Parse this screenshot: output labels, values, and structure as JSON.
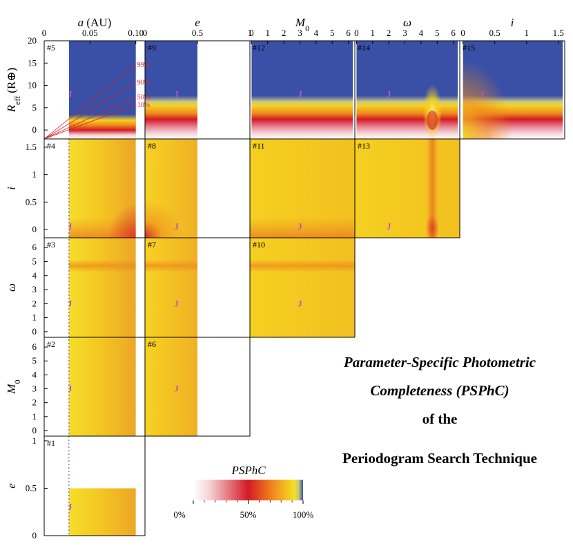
{
  "figure": {
    "caption_lines": [
      "Parameter-Specific Photometric",
      "Completeness (PSPhC)",
      "of the",
      "Periodogram Search Technique"
    ],
    "caption_italic": [
      true,
      true,
      false,
      false
    ]
  },
  "chart_data": {
    "type": "heatmap",
    "title": "Parameter-Specific Photometric Completeness (PSPhC) of the Periodogram Search Technique",
    "columns": [
      {
        "key": "a",
        "label": "a (AU)",
        "ticks": [
          "0",
          "0.05",
          "0.10"
        ],
        "tick_values": [
          0,
          0.05,
          0.1
        ],
        "range": [
          0,
          0.11
        ]
      },
      {
        "key": "e",
        "label": "e",
        "ticks": [
          "0",
          "0.5",
          "1"
        ],
        "tick_values": [
          0,
          0.5,
          1
        ],
        "range": [
          0,
          1
        ]
      },
      {
        "key": "M0",
        "label": "M0",
        "ticks": [
          "0",
          "1",
          "2",
          "3",
          "4",
          "5",
          "6"
        ],
        "tick_values": [
          0,
          1,
          2,
          3,
          4,
          5,
          6
        ],
        "range": [
          -0.1,
          6.4
        ]
      },
      {
        "key": "omega",
        "label": "ω",
        "ticks": [
          "0",
          "1",
          "2",
          "3",
          "4",
          "5",
          "6"
        ],
        "tick_values": [
          0,
          1,
          2,
          3,
          4,
          5,
          6
        ],
        "range": [
          -0.1,
          6.4
        ]
      },
      {
        "key": "i",
        "label": "i",
        "ticks": [
          "0",
          "0.5",
          "1",
          "1.5"
        ],
        "tick_values": [
          0,
          0.5,
          1,
          1.5
        ],
        "range": [
          -0.05,
          1.6
        ]
      }
    ],
    "rows": [
      {
        "key": "Reff",
        "label": "Reff (R⊕)",
        "ticks": [
          "0",
          "5",
          "10",
          "15",
          "20"
        ],
        "tick_values": [
          0,
          5,
          10,
          15,
          20
        ],
        "range": [
          -2,
          20
        ]
      },
      {
        "key": "i",
        "label": "i",
        "ticks": [
          "0",
          "0.5",
          "1",
          "1.5"
        ],
        "tick_values": [
          0,
          0.5,
          1,
          1.5
        ],
        "range": [
          -0.15,
          1.65
        ]
      },
      {
        "key": "omega",
        "label": "ω",
        "ticks": [
          "0",
          "1",
          "2",
          "3",
          "4",
          "5",
          "6"
        ],
        "tick_values": [
          0,
          1,
          2,
          3,
          4,
          5,
          6
        ],
        "range": [
          -0.4,
          6.7
        ]
      },
      {
        "key": "M0",
        "label": "M0",
        "ticks": [
          "0",
          "1",
          "2",
          "3",
          "4",
          "5",
          "6"
        ],
        "tick_values": [
          0,
          1,
          2,
          3,
          4,
          5,
          6
        ],
        "range": [
          -0.4,
          6.7
        ]
      },
      {
        "key": "e",
        "label": "e",
        "ticks": [
          "0",
          "0.5",
          "1"
        ],
        "tick_values": [
          0,
          0.5,
          1
        ],
        "range": [
          0,
          1.05
        ]
      }
    ],
    "panels": [
      {
        "id": "#5",
        "row": "Reff",
        "col": "a",
        "x_range": [
          0.027,
          0.1
        ],
        "y_range": [
          -2,
          20
        ],
        "j": [
          0.028,
          8
        ]
      },
      {
        "id": "#9",
        "row": "Reff",
        "col": "e",
        "x_range": [
          0,
          0.5
        ],
        "y_range": [
          -2,
          20
        ],
        "j": [
          0.3,
          8
        ]
      },
      {
        "id": "#12",
        "row": "Reff",
        "col": "M0",
        "x_range": [
          0,
          6.28
        ],
        "y_range": [
          -2,
          20
        ],
        "j": [
          3,
          8
        ]
      },
      {
        "id": "#14",
        "row": "Reff",
        "col": "omega",
        "x_range": [
          0,
          6.28
        ],
        "y_range": [
          -2,
          20
        ],
        "j": [
          2,
          8
        ]
      },
      {
        "id": "#15",
        "row": "Reff",
        "col": "i",
        "x_range": [
          0,
          1.57
        ],
        "y_range": [
          -2,
          20
        ],
        "j": [
          0.3,
          8
        ]
      },
      {
        "id": "#4",
        "row": "i",
        "col": "a",
        "x_range": [
          0.027,
          0.1
        ],
        "y_range": [
          -0.15,
          1.65
        ],
        "j": [
          0.028,
          0.05
        ]
      },
      {
        "id": "#8",
        "row": "i",
        "col": "e",
        "x_range": [
          0,
          0.5
        ],
        "y_range": [
          -0.15,
          1.65
        ],
        "j": [
          0.3,
          0.05
        ]
      },
      {
        "id": "#11",
        "row": "i",
        "col": "M0",
        "x_range": [
          -0.1,
          6.4
        ],
        "y_range": [
          -0.15,
          1.65
        ],
        "j": [
          3,
          0.05
        ]
      },
      {
        "id": "#13",
        "row": "i",
        "col": "omega",
        "x_range": [
          -0.1,
          6.4
        ],
        "y_range": [
          -0.15,
          1.65
        ],
        "j": [
          2,
          0.05
        ]
      },
      {
        "id": "#3",
        "row": "omega",
        "col": "a",
        "x_range": [
          0.027,
          0.1
        ],
        "y_range": [
          -0.4,
          6.7
        ],
        "j": [
          0.028,
          2
        ]
      },
      {
        "id": "#7",
        "row": "omega",
        "col": "e",
        "x_range": [
          0,
          0.5
        ],
        "y_range": [
          -0.4,
          6.7
        ],
        "j": [
          0.3,
          2
        ]
      },
      {
        "id": "#10",
        "row": "omega",
        "col": "M0",
        "x_range": [
          -0.1,
          6.4
        ],
        "y_range": [
          -0.4,
          6.7
        ],
        "j": [
          3,
          2
        ]
      },
      {
        "id": "#2",
        "row": "M0",
        "col": "a",
        "x_range": [
          0.027,
          0.1
        ],
        "y_range": [
          -0.4,
          6.7
        ],
        "j": [
          0.028,
          3
        ]
      },
      {
        "id": "#6",
        "row": "M0",
        "col": "e",
        "x_range": [
          0,
          0.5
        ],
        "y_range": [
          -0.4,
          6.7
        ],
        "j": [
          0.3,
          3
        ]
      },
      {
        "id": "#1",
        "row": "e",
        "col": "a",
        "x_range": [
          0.027,
          0.1
        ],
        "y_range": [
          0,
          0.5
        ],
        "j": [
          0.028,
          0.3
        ]
      }
    ],
    "j_label": "J",
    "contours": {
      "panel": "#5",
      "labels": [
        "99%",
        "90%",
        "50%",
        "10%"
      ],
      "r_at_a_max": [
        14.6,
        10.6,
        7.4,
        5.6
      ]
    },
    "colorbar": {
      "title": "PSPhC",
      "tick_labels": [
        "0%",
        "50%",
        "100%"
      ],
      "tick_values": [
        0,
        50,
        100
      ],
      "stops": [
        {
          "v": 0,
          "color": "#ffffff"
        },
        {
          "v": 15,
          "color": "#f5d2d6"
        },
        {
          "v": 50,
          "color": "#d41a24"
        },
        {
          "v": 70,
          "color": "#f07d1e"
        },
        {
          "v": 85,
          "color": "#f5c020"
        },
        {
          "v": 92,
          "color": "#f5e020"
        },
        {
          "v": 96,
          "color": "#c8c878"
        },
        {
          "v": 100,
          "color": "#3a50a6"
        }
      ]
    },
    "colors": {
      "blue": "#3a50a6",
      "red": "#d41a24",
      "orange": "#ee8a1e",
      "yellow": "#f5d21e",
      "pink": "#f5d2d6",
      "j": "#c050c8"
    }
  }
}
